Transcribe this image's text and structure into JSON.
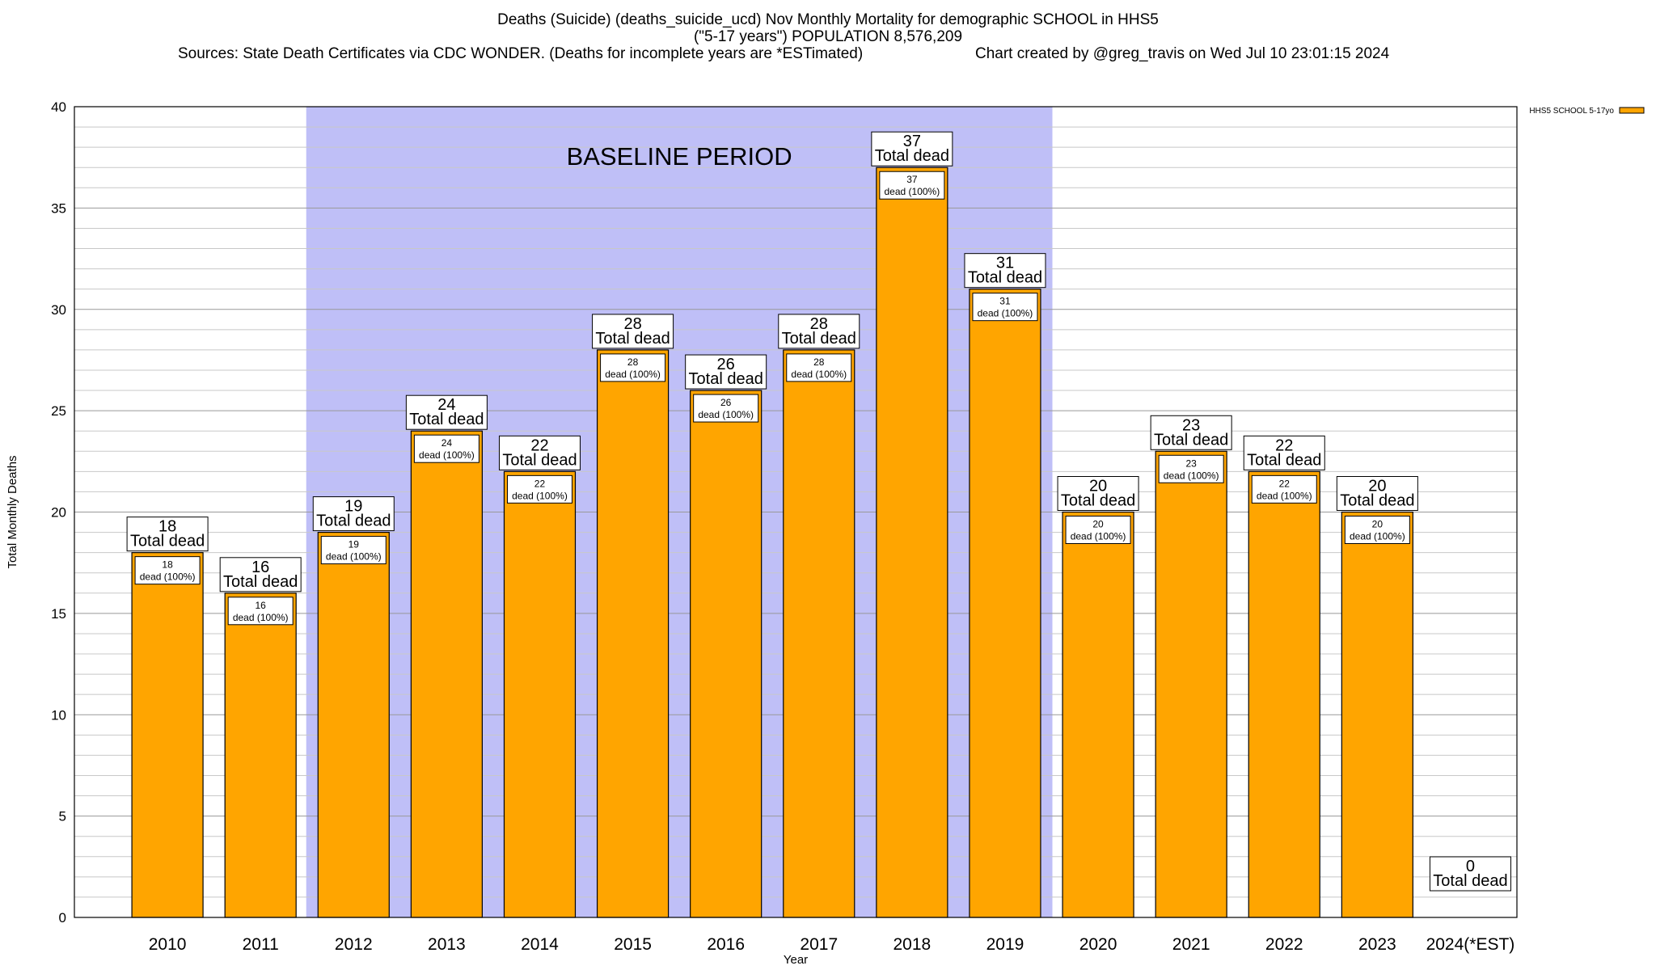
{
  "chart_data": {
    "type": "bar",
    "title_lines": [
      "Deaths (Suicide) (deaths_suicide_ucd) Nov Monthly Mortality for demographic SCHOOL in HHS5",
      "(\"5-17 years\") POPULATION 8,576,209"
    ],
    "sources": "Sources: State Death Certificates via CDC WONDER. (Deaths for incomplete years are *ESTimated)",
    "credit": "Chart created by @greg_travis on Wed Jul 10 23:01:15 2024",
    "xlabel": "Year",
    "ylabel": "Total Monthly Deaths",
    "ylim": [
      0,
      40
    ],
    "y_major_ticks": [
      0,
      5,
      10,
      15,
      20,
      25,
      30,
      35,
      40
    ],
    "y_minor_step": 1,
    "categories": [
      "2010",
      "2011",
      "2012",
      "2013",
      "2014",
      "2015",
      "2016",
      "2017",
      "2018",
      "2019",
      "2020",
      "2021",
      "2022",
      "2023",
      "2024(*EST)"
    ],
    "series": [
      {
        "name": "HHS5 SCHOOL 5-17yo",
        "color": "#FFA500",
        "values": [
          18,
          16,
          19,
          24,
          22,
          28,
          26,
          28,
          37,
          31,
          20,
          23,
          22,
          20,
          0
        ]
      }
    ],
    "total_label_suffix": "Total dead",
    "bar_label_suffix": "dead (100%)",
    "baseline": {
      "label": "BASELINE PERIOD",
      "start_category": "2012",
      "end_category": "2019",
      "color": "#BFBFF7"
    },
    "legend": {
      "position": "top-right"
    }
  }
}
